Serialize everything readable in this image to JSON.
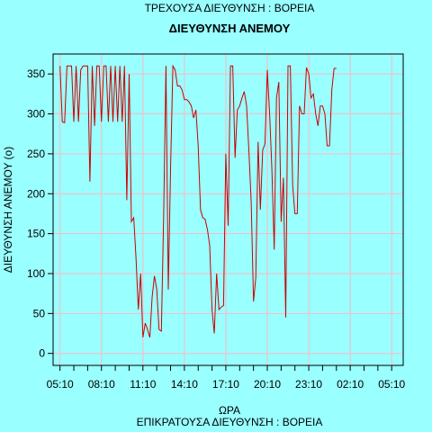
{
  "subtitle": "ΤΡΕΧΟΥΣΑ ΔΙΕΥΘΥΝΣΗ : ΒΟΡΕΙΑ",
  "footer": "ΕΠΙΚΡΑΤΟΥΣΑ ΔΙΕΥΘΥΝΣΗ : ΒΟΡΕΙΑ",
  "colors": {
    "background": "#99ffff",
    "line": "#cc0000",
    "grid": "#ffb6c1"
  },
  "chart_data": {
    "type": "line",
    "title": "ΔΙΕΥΘΥΝΣΗ ΑΝΕΜΟΥ",
    "xlabel": "ΩΡΑ",
    "ylabel": "ΔΙΕΥΘΥΝΣΗ ΑΝΕΜΟΥ (ο)",
    "xlim": [
      "04:40",
      "06:00 (+1 day)"
    ],
    "ylim": [
      -15,
      375
    ],
    "x_ticks": [
      "05:10",
      "08:10",
      "11:10",
      "14:10",
      "17:10",
      "20:10",
      "23:10",
      "02:10",
      "05:10"
    ],
    "y_ticks": [
      0,
      50,
      100,
      150,
      200,
      250,
      300,
      350
    ],
    "grid": true,
    "x_unit": "time of day, 10-minute readings from 05:10 to 05:00 next day",
    "series": [
      {
        "values": [
          360,
          290,
          289,
          360,
          360,
          360,
          290,
          360,
          290,
          355,
          360,
          360,
          360,
          215,
          360,
          285,
          360,
          360,
          290,
          360,
          360,
          290,
          360,
          290,
          360,
          290,
          360,
          290,
          360,
          192,
          350,
          165,
          170,
          120,
          55,
          100,
          20,
          38,
          30,
          20,
          70,
          97,
          80,
          30,
          28,
          170,
          360,
          80,
          230,
          360,
          355,
          335,
          335,
          330,
          318,
          318,
          315,
          310,
          295,
          305,
          260,
          180,
          170,
          168,
          155,
          135,
          55,
          25,
          100,
          55,
          58,
          60,
          250,
          160,
          360,
          360,
          245,
          305,
          310,
          320,
          328,
          310,
          255,
          190,
          65,
          95,
          265,
          180,
          255,
          262,
          355,
          300,
          230,
          130,
          320,
          340,
          165,
          220,
          45,
          360,
          360,
          210,
          175,
          175,
          310,
          300,
          300,
          358,
          350,
          320,
          325,
          300,
          285,
          310,
          310,
          300,
          260,
          260,
          330,
          357,
          357
        ]
      }
    ]
  }
}
